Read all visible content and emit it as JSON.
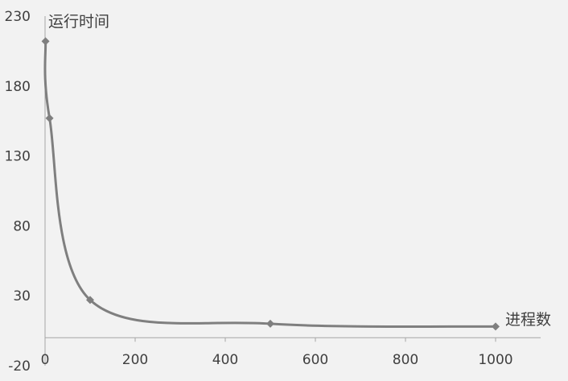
{
  "chart_data": {
    "type": "line",
    "title": "",
    "xlabel": "进程数",
    "ylabel": "运行时间",
    "xlim": [
      0,
      1100
    ],
    "ylim": [
      -20,
      230
    ],
    "x_ticks": [
      0,
      200,
      400,
      600,
      800,
      1000
    ],
    "y_ticks": [
      -20,
      30,
      80,
      130,
      180,
      230
    ],
    "grid": false,
    "legend": "none",
    "series": [
      {
        "x": [
          1,
          10,
          100,
          500,
          1000
        ],
        "y": [
          212,
          157,
          27,
          10,
          8
        ]
      }
    ],
    "line_color": "#7f7f7f",
    "marker": "diamond"
  }
}
